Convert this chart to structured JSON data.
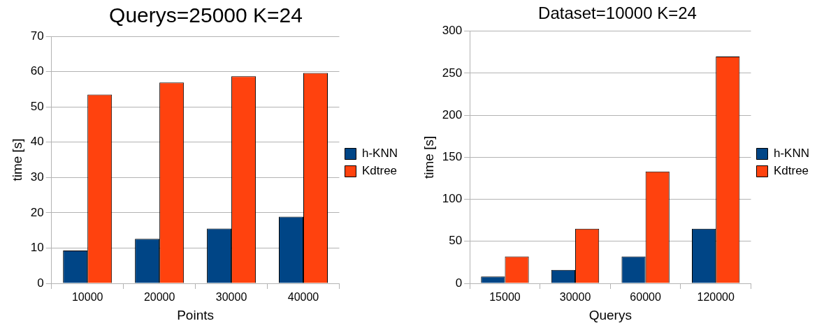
{
  "chart_data": [
    {
      "type": "bar",
      "title": "Querys=25000 K=24",
      "xlabel": "Points",
      "ylabel": "time [s]",
      "categories": [
        "10000",
        "20000",
        "30000",
        "40000"
      ],
      "series": [
        {
          "name": "h-KNN",
          "color": "#004586",
          "values": [
            9.3,
            12.6,
            15.5,
            18.9
          ]
        },
        {
          "name": "Kdtree",
          "color": "#ff420e",
          "values": [
            53.5,
            56.9,
            58.7,
            59.6
          ]
        }
      ],
      "ylim": [
        0,
        70
      ],
      "yticks": [
        0,
        10,
        20,
        30,
        40,
        50,
        60,
        70
      ],
      "grid": "y",
      "legend": "right"
    },
    {
      "type": "bar",
      "title": "Dataset=10000 K=24",
      "xlabel": "Querys",
      "ylabel": "time [s]",
      "categories": [
        "15000",
        "30000",
        "60000",
        "120000"
      ],
      "series": [
        {
          "name": "h-KNN",
          "color": "#004586",
          "values": [
            8,
            16,
            32,
            65
          ]
        },
        {
          "name": "Kdtree",
          "color": "#ff420e",
          "values": [
            32,
            65,
            133,
            270
          ]
        }
      ],
      "ylim": [
        0,
        300
      ],
      "yticks": [
        0,
        50,
        100,
        150,
        200,
        250,
        300
      ],
      "grid": "y",
      "legend": "right"
    }
  ]
}
